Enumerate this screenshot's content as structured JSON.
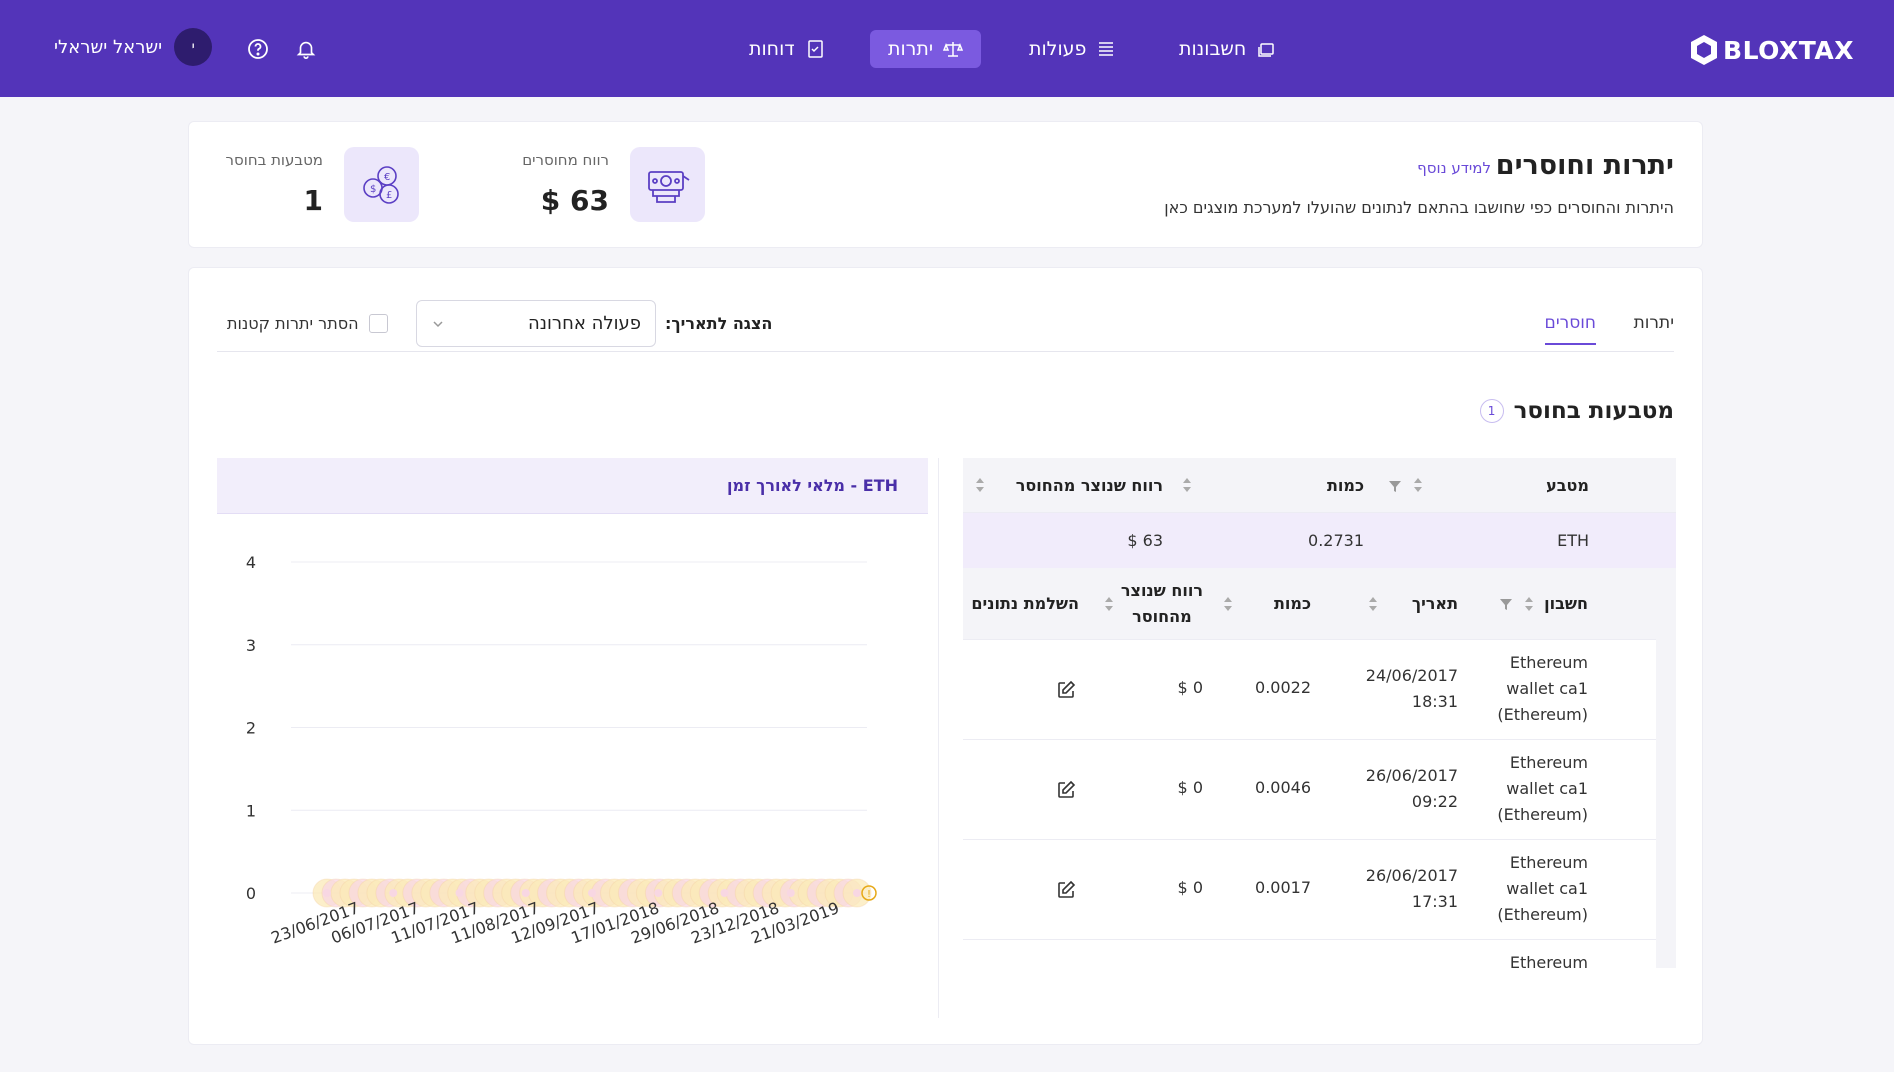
{
  "nav": {
    "logo": "BLOXTAX",
    "items": [
      {
        "label": "חשבונות",
        "icon": "folders-icon"
      },
      {
        "label": "פעולות",
        "icon": "list-icon"
      },
      {
        "label": "יתרות",
        "icon": "scale-icon",
        "active": true
      },
      {
        "label": "דוחות",
        "icon": "report-icon"
      }
    ],
    "user_name": "ישראל ישראלי",
    "avatar_initial": "י"
  },
  "summary": {
    "title": "יתרות וחוסרים",
    "more_info": "למידע נוסף",
    "description": "היתרות והחוסרים כפי שחושבו בהתאם לנתונים שהועלו למערכת מוצגים כאן",
    "profit_label": "רווח מחוסרים",
    "profit_value": "$ 63",
    "coins_label": "מטבעות בחוסר",
    "coins_value": "1"
  },
  "main": {
    "tabs": [
      {
        "label": "יתרות",
        "active": false
      },
      {
        "label": "חוסרים",
        "active": true
      }
    ],
    "date_label": "הצגה לתאריך:",
    "date_value": "פעולה אחרונה",
    "hide_small": "הסתר יתרות קטנות",
    "section_title": "מטבעות בחוסר",
    "section_count": "1"
  },
  "table": {
    "headers": {
      "coin": "מטבע",
      "quantity": "כמות",
      "profit": "רווח שנוצר מהחוסר"
    },
    "summary_row": {
      "coin": "ETH",
      "quantity": "0.2731",
      "profit": "$ 63"
    },
    "subheaders": {
      "account": "חשבון",
      "date": "תאריך",
      "quantity": "כמות",
      "profit_line1": "רווח שנוצר",
      "profit_line2": "מהחוסר",
      "complete": "השלמת נתונים"
    },
    "rows": [
      {
        "acc1": "Ethereum",
        "acc2": "wallet ca1",
        "acc3": "(Ethereum)",
        "date": "24/06/2017",
        "time": "18:31",
        "qty": "0.0022",
        "profit": "$ 0"
      },
      {
        "acc1": "Ethereum",
        "acc2": "wallet ca1",
        "acc3": "(Ethereum)",
        "date": "26/06/2017",
        "time": "09:22",
        "qty": "0.0046",
        "profit": "$ 0"
      },
      {
        "acc1": "Ethereum",
        "acc2": "wallet ca1",
        "acc3": "(Ethereum)",
        "date": "26/06/2017",
        "time": "17:31",
        "qty": "0.0017",
        "profit": "$ 0"
      },
      {
        "acc1": "Ethereum",
        "acc2": "",
        "acc3": "",
        "date": "",
        "time": "",
        "qty": "",
        "profit": ""
      }
    ]
  },
  "chart_data": {
    "type": "line",
    "title": "ETH - מלאי לאורך זמן",
    "ylim": [
      0,
      4
    ],
    "yticks": [
      "0",
      "1",
      "2",
      "3",
      "4"
    ],
    "x": [
      "23/06/2017",
      "06/07/2017",
      "11/07/2017",
      "11/08/2017",
      "12/09/2017",
      "17/01/2018",
      "29/06/2018",
      "23/12/2018",
      "21/03/2019"
    ],
    "series": [
      {
        "values": [
          0,
          0,
          0,
          0,
          0,
          0,
          0,
          0,
          0
        ]
      }
    ],
    "colors": {
      "marker_a": "#fbe9b8",
      "marker_b": "#f8d7e3",
      "alert": "#e6a817",
      "grid": "#ececf3"
    }
  }
}
